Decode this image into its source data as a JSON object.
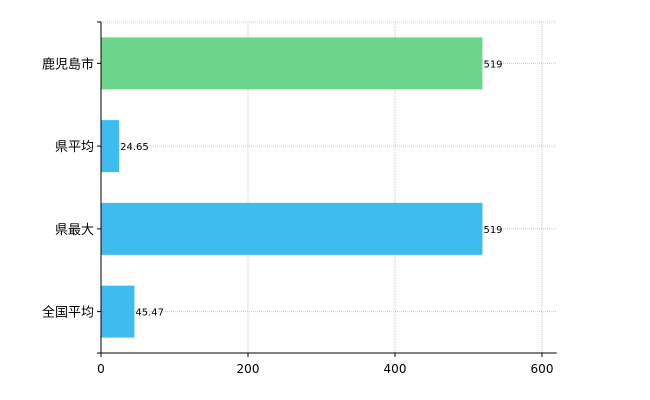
{
  "chart_data": {
    "type": "bar",
    "orientation": "horizontal",
    "title": "",
    "xlabel": "",
    "ylabel": "",
    "categories": [
      "鹿児島市",
      "県平均",
      "県最大",
      "全国平均"
    ],
    "values": [
      519,
      24.65,
      519,
      45.47
    ],
    "value_labels": [
      "519",
      "24.65",
      "519",
      "45.47"
    ],
    "colors": [
      "#6dd48c",
      "#3ebcf0",
      "#3ebcf0",
      "#3ebcf0"
    ],
    "xlim": [
      0,
      620
    ],
    "xticks": [
      0,
      200,
      400,
      600
    ],
    "xtick_labels": [
      "0",
      "200",
      "400",
      "600"
    ],
    "grid": true,
    "legend": "none"
  }
}
